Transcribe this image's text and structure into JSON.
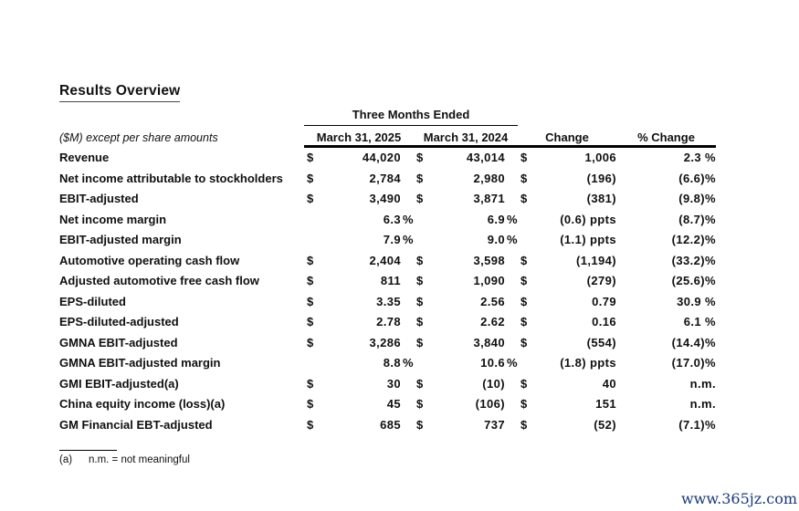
{
  "title": "Results Overview",
  "watermark": "www.365jz.com",
  "colors": {
    "text": "#101010",
    "rule": "#000000",
    "watermark": "#16397b"
  },
  "table": {
    "group_header": "Three Months Ended",
    "units_note": "($M) except per share amounts",
    "columns": [
      "March 31, 2025",
      "March 31, 2024",
      "Change",
      "% Change"
    ],
    "rows": [
      {
        "label": "Revenue",
        "d1": "$",
        "v1": "44,020",
        "s1": "",
        "d2": "$",
        "v2": "43,014",
        "s2": "",
        "dc": "$",
        "vc": "1,006",
        "vp": "2.3 %"
      },
      {
        "label": "Net income attributable to stockholders",
        "d1": "$",
        "v1": "2,784",
        "s1": "",
        "d2": "$",
        "v2": "2,980",
        "s2": "",
        "dc": "$",
        "vc": "(196)",
        "vp": "(6.6)%"
      },
      {
        "label": "EBIT-adjusted",
        "d1": "$",
        "v1": "3,490",
        "s1": "",
        "d2": "$",
        "v2": "3,871",
        "s2": "",
        "dc": "$",
        "vc": "(381)",
        "vp": "(9.8)%"
      },
      {
        "label": "Net income margin",
        "d1": "",
        "v1": "6.3",
        "s1": "%",
        "d2": "",
        "v2": "6.9",
        "s2": "%",
        "dc": "",
        "vc": "(0.6) ppts",
        "vp": "(8.7)%"
      },
      {
        "label": "EBIT-adjusted margin",
        "d1": "",
        "v1": "7.9",
        "s1": "%",
        "d2": "",
        "v2": "9.0",
        "s2": "%",
        "dc": "",
        "vc": "(1.1) ppts",
        "vp": "(12.2)%"
      },
      {
        "label": "Automotive operating cash flow",
        "d1": "$",
        "v1": "2,404",
        "s1": "",
        "d2": "$",
        "v2": "3,598",
        "s2": "",
        "dc": "$",
        "vc": "(1,194)",
        "vp": "(33.2)%"
      },
      {
        "label": "Adjusted automotive free cash flow",
        "d1": "$",
        "v1": "811",
        "s1": "",
        "d2": "$",
        "v2": "1,090",
        "s2": "",
        "dc": "$",
        "vc": "(279)",
        "vp": "(25.6)%"
      },
      {
        "label": "EPS-diluted",
        "d1": "$",
        "v1": "3.35",
        "s1": "",
        "d2": "$",
        "v2": "2.56",
        "s2": "",
        "dc": "$",
        "vc": "0.79",
        "vp": "30.9 %"
      },
      {
        "label": "EPS-diluted-adjusted",
        "d1": "$",
        "v1": "2.78",
        "s1": "",
        "d2": "$",
        "v2": "2.62",
        "s2": "",
        "dc": "$",
        "vc": "0.16",
        "vp": "6.1 %"
      },
      {
        "label": "GMNA EBIT-adjusted",
        "d1": "$",
        "v1": "3,286",
        "s1": "",
        "d2": "$",
        "v2": "3,840",
        "s2": "",
        "dc": "$",
        "vc": "(554)",
        "vp": "(14.4)%"
      },
      {
        "label": "GMNA EBIT-adjusted margin",
        "d1": "",
        "v1": "8.8",
        "s1": "%",
        "d2": "",
        "v2": "10.6",
        "s2": "%",
        "dc": "",
        "vc": "(1.8) ppts",
        "vp": "(17.0)%"
      },
      {
        "label": "GMI EBIT-adjusted(a)",
        "d1": "$",
        "v1": "30",
        "s1": "",
        "d2": "$",
        "v2": "(10)",
        "s2": "",
        "dc": "$",
        "vc": "40",
        "vp": "n.m."
      },
      {
        "label": "China equity income (loss)(a)",
        "d1": "$",
        "v1": "45",
        "s1": "",
        "d2": "$",
        "v2": "(106)",
        "s2": "",
        "dc": "$",
        "vc": "151",
        "vp": "n.m."
      },
      {
        "label": "GM Financial EBT-adjusted",
        "d1": "$",
        "v1": "685",
        "s1": "",
        "d2": "$",
        "v2": "737",
        "s2": "",
        "dc": "$",
        "vc": "(52)",
        "vp": "(7.1)%"
      }
    ],
    "footnote_marker": "(a)",
    "footnote_text": "n.m. = not meaningful"
  }
}
